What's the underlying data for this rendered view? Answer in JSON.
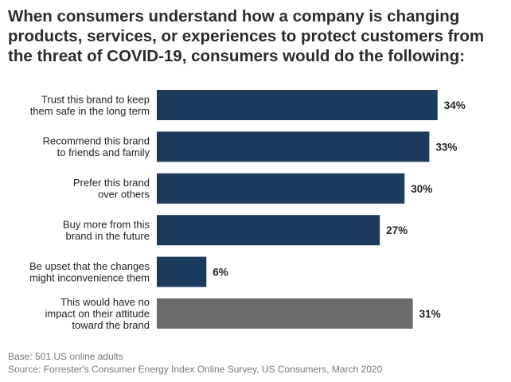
{
  "title_lines": [
    "When consumers understand how a company is changing",
    "products, services, or experiences to protect customers from",
    "the threat of COVID-19, consumers would do the following:"
  ],
  "chart_data": {
    "type": "bar",
    "orientation": "horizontal",
    "title": "When consumers understand how a company is changing products, services, or experiences to protect customers from the threat of COVID-19, consumers would do the following:",
    "categories": [
      [
        "Trust this brand to keep",
        "them safe in the long term"
      ],
      [
        "Recommend this brand",
        "to friends and family"
      ],
      [
        "Prefer this brand",
        "over others"
      ],
      [
        "Buy more from this",
        "brand in the future"
      ],
      [
        "Be upset that the changes",
        "might inconvenience them"
      ],
      [
        "This would have no",
        "impact on their attitude",
        "toward the brand"
      ]
    ],
    "values": [
      34,
      33,
      30,
      27,
      6,
      31
    ],
    "value_labels": [
      "34%",
      "33%",
      "30%",
      "27%",
      "6%",
      "31%"
    ],
    "unit": "%",
    "xlim": [
      0,
      40
    ],
    "bar_colors": [
      "#1b3a5c",
      "#1b3a5c",
      "#1b3a5c",
      "#1b3a5c",
      "#1b3a5c",
      "#6b6b6d"
    ],
    "xlabel": "",
    "ylabel": "",
    "grid": false,
    "legend": "none"
  },
  "footer": {
    "base": "Base: 501 US online adults",
    "source": "Source: Forrester's Consumer Energy Index Online Survey, US Consumers, March 2020"
  }
}
